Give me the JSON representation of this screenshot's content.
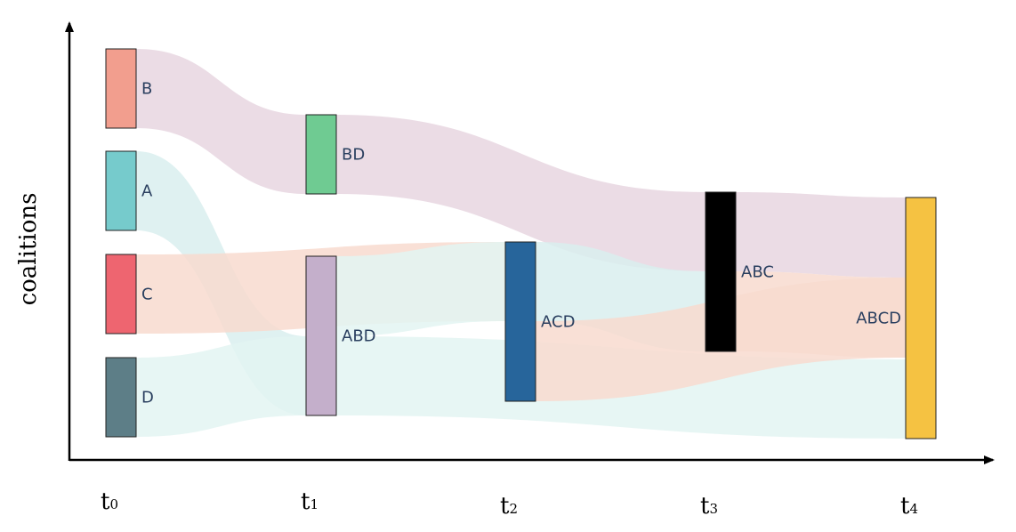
{
  "y_axis_label": "coalitions",
  "time_steps": [
    {
      "base": "t",
      "sub": "0"
    },
    {
      "base": "t",
      "sub": "1"
    },
    {
      "base": "t",
      "sub": "2"
    },
    {
      "base": "t",
      "sub": "3"
    },
    {
      "base": "t",
      "sub": "4"
    }
  ],
  "nodes": [
    {
      "id": "B",
      "label": "B",
      "color": "#f29e8e",
      "step": 0
    },
    {
      "id": "A",
      "label": "A",
      "color": "#76cbcc",
      "step": 0
    },
    {
      "id": "C",
      "label": "C",
      "color": "#ee6570",
      "step": 0
    },
    {
      "id": "D",
      "label": "D",
      "color": "#5d7e87",
      "step": 0
    },
    {
      "id": "BD",
      "label": "BD",
      "color": "#6fcb92",
      "step": 1
    },
    {
      "id": "ABD",
      "label": "ABD",
      "color": "#c4afcb",
      "step": 1
    },
    {
      "id": "ACD",
      "label": "ACD",
      "color": "#27659b",
      "step": 2
    },
    {
      "id": "ABC",
      "label": "ABC",
      "color": "#000000",
      "step": 3
    },
    {
      "id": "ABCD",
      "label": "ABCD",
      "color": "#f5c242",
      "step": 4
    }
  ],
  "links": [
    {
      "from": "B",
      "to": "BD",
      "color": "#e8d6e1"
    },
    {
      "from": "A",
      "to": "ABD",
      "color": "#d9eeee"
    },
    {
      "from": "C",
      "to": "ACD",
      "color": "#f8dbcf"
    },
    {
      "from": "D",
      "to": "ABD",
      "color": "#e3f5f2"
    },
    {
      "from": "BD",
      "to": "ABC",
      "color": "#e8d6e1"
    },
    {
      "from": "ABD",
      "to": "ACD",
      "color": "#e3f5f2"
    },
    {
      "from": "ABD",
      "to": "ABCD",
      "color": "#e3f5f2"
    },
    {
      "from": "ACD",
      "to": "ABC",
      "color": "#d9eeee"
    },
    {
      "from": "ACD",
      "to": "ABCD",
      "color": "#f8dbcf"
    },
    {
      "from": "ABC",
      "to": "ABCD",
      "color": "#e8d6e1"
    },
    {
      "from": "ABC",
      "to": "ABCD",
      "color": "#f8dbcf"
    }
  ]
}
